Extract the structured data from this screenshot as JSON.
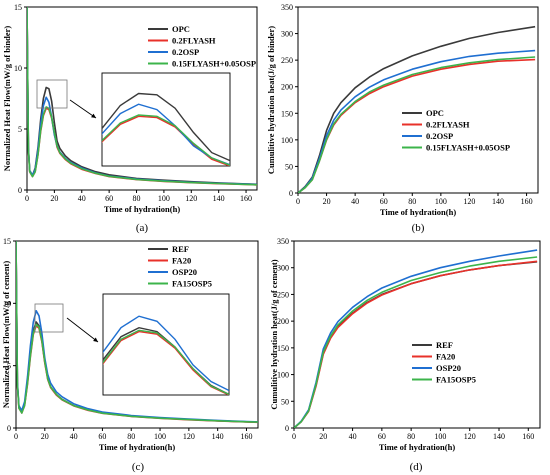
{
  "colors": {
    "c1": "#3a3a3a",
    "c2": "#e8312a",
    "c3": "#1f6fd1",
    "c4": "#3cb44b"
  },
  "chart_data": [
    {
      "id": "a",
      "type": "line",
      "panel_label": "(a)",
      "xlabel": "Time of hydration(h)",
      "ylabel": "Normalized Heat Flow(mW/g of binder)",
      "xlim": [
        0,
        168
      ],
      "ylim": [
        0,
        15
      ],
      "xticks": [
        0,
        20,
        40,
        60,
        80,
        100,
        120,
        140,
        160
      ],
      "yticks": [
        0,
        5,
        10,
        15
      ],
      "legend_position": "top-right",
      "inset": true,
      "series": [
        {
          "name": "OPC",
          "color_key": "c1",
          "x": [
            0,
            1,
            2,
            4,
            6,
            8,
            10,
            12,
            14,
            16,
            18,
            20,
            22,
            24,
            28,
            32,
            40,
            50,
            60,
            80,
            100,
            120,
            140,
            160,
            168
          ],
          "y": [
            15,
            3.5,
            1.6,
            1.2,
            1.8,
            3.5,
            5.8,
            7.5,
            8.4,
            8.3,
            7.3,
            5.5,
            4.0,
            3.4,
            2.8,
            2.4,
            1.9,
            1.5,
            1.25,
            0.95,
            0.8,
            0.68,
            0.58,
            0.5,
            0.47
          ]
        },
        {
          "name": "0.2FLYASH",
          "color_key": "c2",
          "x": [
            0,
            1,
            2,
            4,
            6,
            8,
            10,
            12,
            14,
            16,
            18,
            20,
            22,
            24,
            28,
            32,
            40,
            50,
            60,
            80,
            100,
            120,
            140,
            160,
            168
          ],
          "y": [
            15,
            3.3,
            1.5,
            1.1,
            1.5,
            2.9,
            4.8,
            6.1,
            6.7,
            6.6,
            5.9,
            4.6,
            3.5,
            3.0,
            2.5,
            2.15,
            1.7,
            1.35,
            1.1,
            0.85,
            0.7,
            0.6,
            0.52,
            0.45,
            0.42
          ]
        },
        {
          "name": "0.2OSP",
          "color_key": "c3",
          "x": [
            0,
            1,
            2,
            4,
            6,
            8,
            10,
            12,
            14,
            16,
            18,
            20,
            22,
            24,
            28,
            32,
            40,
            50,
            60,
            80,
            100,
            120,
            140,
            160,
            168
          ],
          "y": [
            15,
            3.4,
            1.6,
            1.2,
            1.7,
            3.3,
            5.4,
            6.9,
            7.6,
            7.2,
            6.0,
            4.5,
            3.6,
            3.1,
            2.6,
            2.25,
            1.8,
            1.4,
            1.15,
            0.9,
            0.75,
            0.63,
            0.55,
            0.48,
            0.45
          ]
        },
        {
          "name": "0.15FLYASH+0.05OSP",
          "color_key": "c4",
          "x": [
            0,
            1,
            2,
            4,
            6,
            8,
            10,
            12,
            14,
            16,
            18,
            20,
            22,
            24,
            28,
            32,
            40,
            50,
            60,
            80,
            100,
            120,
            140,
            160,
            168
          ],
          "y": [
            15,
            3.3,
            1.5,
            1.1,
            1.5,
            2.9,
            4.9,
            6.2,
            6.8,
            6.7,
            6.0,
            4.7,
            3.6,
            3.05,
            2.55,
            2.2,
            1.75,
            1.38,
            1.12,
            0.87,
            0.72,
            0.61,
            0.53,
            0.46,
            0.43
          ]
        }
      ]
    },
    {
      "id": "b",
      "type": "line",
      "panel_label": "(b)",
      "xlabel": "Time of hydration(h)",
      "ylabel": "Cumulitive hydration heat(J/g of binder)",
      "xlim": [
        0,
        168
      ],
      "ylim": [
        0,
        350
      ],
      "xticks": [
        0,
        20,
        40,
        60,
        80,
        100,
        120,
        140,
        160
      ],
      "yticks": [
        0,
        50,
        100,
        150,
        200,
        250,
        300,
        350
      ],
      "legend_position": "bottom-right",
      "series": [
        {
          "name": "OPC",
          "color_key": "c1",
          "x": [
            0,
            5,
            10,
            15,
            20,
            25,
            30,
            40,
            50,
            60,
            80,
            100,
            120,
            140,
            166
          ],
          "y": [
            0,
            12,
            30,
            70,
            118,
            150,
            170,
            198,
            218,
            234,
            258,
            276,
            291,
            302,
            313
          ]
        },
        {
          "name": "0.2FLYASH",
          "color_key": "c2",
          "x": [
            0,
            5,
            10,
            15,
            20,
            25,
            30,
            40,
            50,
            60,
            80,
            100,
            120,
            140,
            166
          ],
          "y": [
            0,
            10,
            25,
            60,
            100,
            128,
            146,
            170,
            187,
            200,
            220,
            233,
            242,
            248,
            251
          ]
        },
        {
          "name": "0.2OSP",
          "color_key": "c3",
          "x": [
            0,
            5,
            10,
            15,
            20,
            25,
            30,
            40,
            50,
            60,
            80,
            100,
            120,
            140,
            166
          ],
          "y": [
            0,
            11,
            28,
            65,
            108,
            137,
            156,
            181,
            199,
            213,
            233,
            247,
            257,
            263,
            268
          ]
        },
        {
          "name": "0.15FLYASH+0.05OSP",
          "color_key": "c4",
          "x": [
            0,
            5,
            10,
            15,
            20,
            25,
            30,
            40,
            50,
            60,
            80,
            100,
            120,
            140,
            166
          ],
          "y": [
            0,
            10,
            25,
            60,
            101,
            130,
            148,
            172,
            190,
            203,
            223,
            236,
            245,
            251,
            256
          ]
        }
      ]
    },
    {
      "id": "c",
      "type": "line",
      "panel_label": "(c)",
      "xlabel": "Time of hydration(h)",
      "ylabel": "Normalized Heat Flow(mW/g of cement)",
      "xlim": [
        0,
        168
      ],
      "ylim": [
        0,
        15
      ],
      "xticks": [
        0,
        20,
        40,
        60,
        80,
        100,
        120,
        140,
        160
      ],
      "yticks": [
        0,
        5,
        10,
        15
      ],
      "legend_position": "top-right",
      "inset": true,
      "series": [
        {
          "name": "REF",
          "color_key": "c1",
          "x": [
            0,
            1,
            2,
            4,
            6,
            8,
            10,
            12,
            14,
            16,
            18,
            20,
            22,
            24,
            28,
            32,
            40,
            50,
            60,
            80,
            100,
            120,
            140,
            160,
            168
          ],
          "y": [
            15,
            3.6,
            1.7,
            1.3,
            1.9,
            3.7,
            6.0,
            7.8,
            8.5,
            8.2,
            7.0,
            5.3,
            4.0,
            3.3,
            2.7,
            2.3,
            1.8,
            1.45,
            1.2,
            0.95,
            0.8,
            0.68,
            0.58,
            0.5,
            0.47
          ]
        },
        {
          "name": "FA20",
          "color_key": "c2",
          "x": [
            0,
            1,
            2,
            4,
            6,
            8,
            10,
            12,
            14,
            16,
            18,
            20,
            22,
            24,
            28,
            32,
            40,
            50,
            60,
            80,
            100,
            120,
            140,
            160,
            168
          ],
          "y": [
            15,
            3.5,
            1.6,
            1.2,
            1.8,
            3.5,
            5.7,
            7.5,
            8.2,
            8.0,
            6.9,
            5.2,
            3.9,
            3.25,
            2.65,
            2.25,
            1.78,
            1.42,
            1.18,
            0.93,
            0.78,
            0.66,
            0.57,
            0.49,
            0.46
          ]
        },
        {
          "name": "OSP20",
          "color_key": "c3",
          "x": [
            0,
            1,
            2,
            4,
            6,
            8,
            10,
            12,
            14,
            16,
            18,
            20,
            22,
            24,
            28,
            32,
            40,
            50,
            60,
            80,
            100,
            120,
            140,
            160,
            168
          ],
          "y": [
            15,
            3.7,
            1.8,
            1.4,
            2.1,
            4.1,
            6.6,
            8.5,
            9.4,
            9.0,
            7.6,
            5.6,
            4.3,
            3.6,
            2.9,
            2.5,
            1.95,
            1.55,
            1.28,
            1.0,
            0.84,
            0.71,
            0.61,
            0.52,
            0.49
          ]
        },
        {
          "name": "FA15OSP5",
          "color_key": "c4",
          "x": [
            0,
            1,
            2,
            4,
            6,
            8,
            10,
            12,
            14,
            16,
            18,
            20,
            22,
            24,
            28,
            32,
            40,
            50,
            60,
            80,
            100,
            120,
            140,
            160,
            168
          ],
          "y": [
            15,
            3.5,
            1.6,
            1.2,
            1.8,
            3.6,
            5.8,
            7.6,
            8.3,
            8.1,
            7.0,
            5.3,
            3.95,
            3.3,
            2.7,
            2.28,
            1.8,
            1.44,
            1.19,
            0.94,
            0.79,
            0.67,
            0.58,
            0.5,
            0.47
          ]
        }
      ]
    },
    {
      "id": "d",
      "type": "line",
      "panel_label": "(d)",
      "xlabel": "Time of hydration(h)",
      "ylabel": "Cumulitive hydration heat(J/g of cement)",
      "xlim": [
        0,
        168
      ],
      "ylim": [
        0,
        350
      ],
      "xticks": [
        0,
        20,
        40,
        60,
        80,
        100,
        120,
        140,
        160
      ],
      "yticks": [
        0,
        50,
        100,
        150,
        200,
        250,
        300,
        350
      ],
      "legend_position": "bottom-right",
      "series": [
        {
          "name": "REF",
          "color_key": "c1",
          "x": [
            0,
            5,
            10,
            15,
            20,
            25,
            30,
            40,
            50,
            60,
            80,
            100,
            120,
            140,
            166
          ],
          "y": [
            0,
            12,
            32,
            80,
            140,
            170,
            190,
            215,
            235,
            250,
            270,
            285,
            296,
            304,
            311
          ]
        },
        {
          "name": "FA20",
          "color_key": "c2",
          "x": [
            0,
            5,
            10,
            15,
            20,
            25,
            30,
            40,
            50,
            60,
            80,
            100,
            120,
            140,
            166
          ],
          "y": [
            0,
            12,
            31,
            78,
            138,
            168,
            188,
            214,
            234,
            249,
            270,
            285,
            296,
            304,
            312
          ]
        },
        {
          "name": "OSP20",
          "color_key": "c3",
          "x": [
            0,
            5,
            10,
            15,
            20,
            25,
            30,
            40,
            50,
            60,
            80,
            100,
            120,
            140,
            166
          ],
          "y": [
            0,
            13,
            34,
            85,
            148,
            178,
            199,
            226,
            246,
            262,
            284,
            300,
            312,
            322,
            333
          ]
        },
        {
          "name": "FA15OSP5",
          "color_key": "c4",
          "x": [
            0,
            5,
            10,
            15,
            20,
            25,
            30,
            40,
            50,
            60,
            80,
            100,
            120,
            140,
            166
          ],
          "y": [
            0,
            12,
            32,
            81,
            142,
            172,
            193,
            219,
            239,
            254,
            276,
            291,
            303,
            312,
            320
          ]
        }
      ]
    }
  ]
}
